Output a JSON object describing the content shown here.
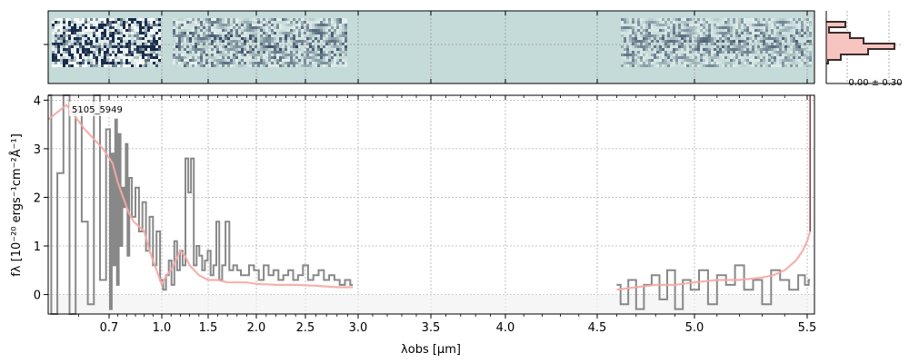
{
  "chart_data": [
    {
      "type": "heatmap",
      "panel": "2d-spectrum",
      "description_colors": {
        "background": "#c5dbd9",
        "dark": "#1a2a4a",
        "light": "#ffffff"
      },
      "grid": true
    },
    {
      "type": "line",
      "panel": "1d-spectrum",
      "annotation": "5105_5949",
      "xlabel": "λobs [μm]",
      "ylabel": "fλ [10⁻²⁰ ergs⁻¹cm⁻²Å⁻¹]",
      "xlim": [
        0.6,
        5.55
      ],
      "ylim": [
        -0.4,
        4.1
      ],
      "x_scale": "wavelength (non-linear prism dispersion)",
      "x_ticks": [
        0.7,
        1.0,
        1.5,
        2.0,
        2.5,
        3.0,
        3.5,
        4.0,
        4.5,
        5.0,
        5.5
      ],
      "x_tick_labels": [
        "0.7",
        "1.0",
        "1.5",
        "2.0",
        "2.5",
        "3.0",
        "3.5",
        "4.0",
        "4.5",
        "5.0",
        "5.5"
      ],
      "y_ticks": [
        0,
        1,
        2,
        3,
        4
      ],
      "y_tick_labels": [
        "0",
        "1",
        "2",
        "3",
        "4"
      ],
      "grid": true,
      "colors": {
        "data": "#888888",
        "model": "#f4aaa5",
        "edge": "#8b3a3a"
      },
      "series": [
        {
          "role": "data",
          "segments": [
            {
              "x": [
                0.6,
                0.61,
                0.62,
                0.63,
                0.64,
                0.65,
                0.66,
                0.67,
                0.68,
                0.69,
                0.7,
                0.71,
                0.72,
                0.73,
                0.74,
                0.75,
                0.76,
                0.77,
                0.78,
                0.79,
                0.8,
                0.81,
                0.82,
                0.84,
                0.86,
                0.88,
                0.9,
                0.92,
                0.94,
                0.96,
                0.98,
                1.0,
                1.03,
                1.06,
                1.09,
                1.12,
                1.15,
                1.18,
                1.21,
                1.24,
                1.27,
                1.3,
                1.33,
                1.36,
                1.39,
                1.42,
                1.45,
                1.48,
                1.51,
                1.54,
                1.57,
                1.6,
                1.63,
                1.66,
                1.7,
                1.74,
                1.78,
                1.82,
                1.86,
                1.9,
                1.95,
                2.0,
                2.05,
                2.1,
                2.15,
                2.2,
                2.25,
                2.3,
                2.35,
                2.4,
                2.45,
                2.5,
                2.55,
                2.6,
                2.65,
                2.7,
                2.75,
                2.8,
                2.85,
                2.9,
                2.95
              ],
              "y": [
                4.1,
                -0.4,
                2.5,
                4.1,
                -0.4,
                3.8,
                1.5,
                -0.2,
                4.1,
                0.3,
                3.4,
                -0.3,
                2.9,
                0.6,
                3.6,
                0.2,
                3.3,
                1.0,
                2.2,
                1.8,
                3.1,
                0.8,
                2.4,
                1.6,
                2.2,
                1.3,
                1.9,
                0.9,
                1.6,
                0.6,
                1.3,
                0.3,
                0.1,
                0.4,
                0.7,
                0.2,
                1.1,
                0.5,
                0.9,
                0.6,
                2.8,
                2.1,
                2.8,
                0.6,
                1.0,
                0.8,
                0.5,
                0.7,
                0.9,
                0.4,
                0.6,
                1.5,
                0.3,
                0.6,
                1.5,
                0.5,
                0.6,
                0.5,
                0.4,
                0.4,
                0.6,
                0.5,
                0.3,
                0.6,
                0.4,
                0.5,
                0.3,
                0.4,
                0.5,
                0.3,
                0.4,
                0.6,
                0.3,
                0.4,
                0.5,
                0.3,
                0.4,
                0.3,
                0.2,
                0.3,
                0.2
              ]
            },
            {
              "x": [
                4.6,
                4.64,
                4.68,
                4.72,
                4.76,
                4.8,
                4.84,
                4.88,
                4.92,
                4.96,
                5.0,
                5.04,
                5.08,
                5.12,
                5.16,
                5.2,
                5.24,
                5.28,
                5.32,
                5.36,
                5.4,
                5.44,
                5.48,
                5.5,
                5.52
              ],
              "y": [
                0.2,
                -0.2,
                0.3,
                -0.3,
                0.2,
                0.4,
                -0.1,
                0.5,
                -0.3,
                0.3,
                0.1,
                0.5,
                -0.2,
                0.4,
                0.2,
                0.6,
                0.1,
                0.3,
                -0.2,
                0.5,
                0.3,
                0.1,
                0.4,
                0.2,
                0.3
              ]
            }
          ]
        },
        {
          "role": "model",
          "segments": [
            {
              "x": [
                0.6,
                0.63,
                0.66,
                0.69,
                0.72,
                0.75,
                0.78,
                0.81,
                0.84,
                0.87,
                0.9,
                0.93,
                0.96,
                1.0,
                1.05,
                1.1,
                1.15,
                1.2,
                1.25,
                1.3,
                1.35,
                1.4,
                1.5,
                1.6,
                1.7,
                1.8,
                1.9,
                2.0,
                2.2,
                2.4,
                2.6,
                2.8,
                2.95
              ],
              "y": [
                3.6,
                3.9,
                3.4,
                3.0,
                2.7,
                2.3,
                2.0,
                1.7,
                1.5,
                1.4,
                1.3,
                0.9,
                0.6,
                0.2,
                0.4,
                0.5,
                0.7,
                0.9,
                0.8,
                0.6,
                0.5,
                0.4,
                0.3,
                0.3,
                0.25,
                0.25,
                0.25,
                0.22,
                0.2,
                0.2,
                0.18,
                0.15,
                0.15
              ]
            },
            {
              "x": [
                4.6,
                4.7,
                4.8,
                4.9,
                5.0,
                5.1,
                5.2,
                5.3,
                5.35,
                5.4,
                5.45,
                5.48,
                5.5,
                5.52
              ],
              "y": [
                0.1,
                0.15,
                0.2,
                0.2,
                0.25,
                0.3,
                0.3,
                0.35,
                0.4,
                0.5,
                0.7,
                0.9,
                1.1,
                1.3
              ]
            }
          ]
        }
      ]
    },
    {
      "type": "line",
      "panel": "profile",
      "annotation": "0.00 ± 0.30",
      "colors": {
        "line": "#3d2b2b",
        "fill": "#f7c5c0"
      }
    }
  ]
}
